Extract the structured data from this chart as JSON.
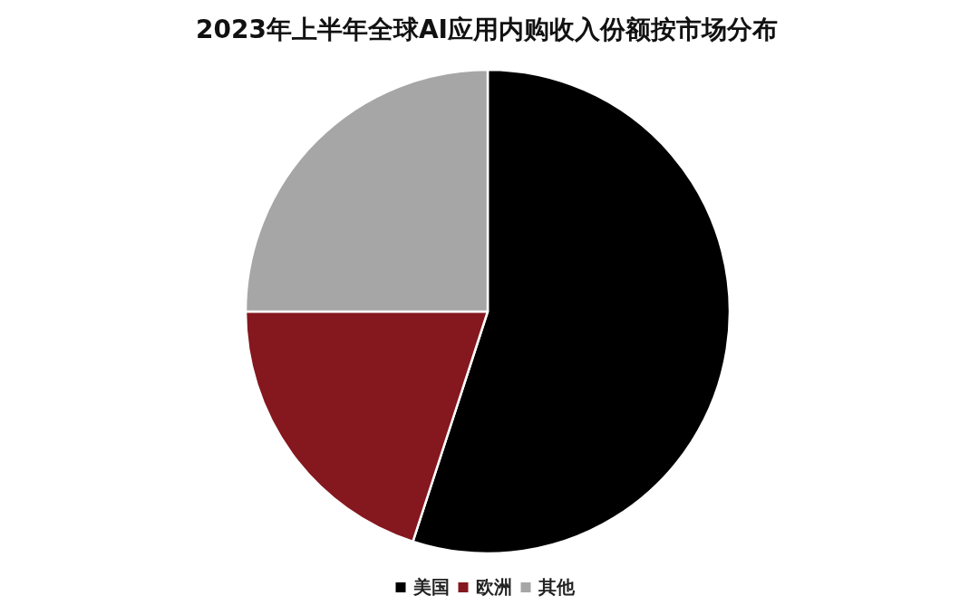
{
  "chart_data": {
    "type": "pie",
    "title": "2023年上半年全球AI应用内购收入份额按市场分布",
    "categories": [
      "美国",
      "欧洲",
      "其他"
    ],
    "values": [
      55,
      20,
      25
    ],
    "colors": [
      "#000000",
      "#85171e",
      "#a6a6a6"
    ],
    "legend": "bottom"
  }
}
